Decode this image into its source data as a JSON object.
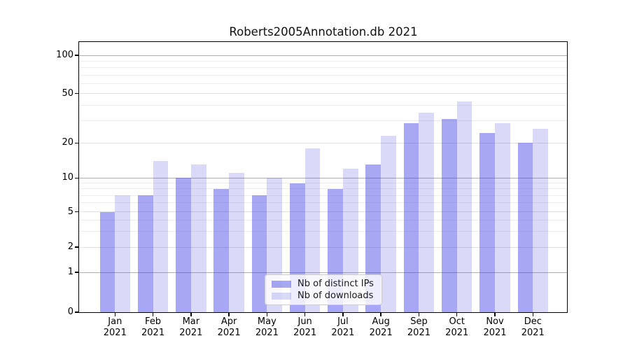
{
  "title": "Roberts2005Annotation.db 2021",
  "chart_data": {
    "type": "bar",
    "title": "Roberts2005Annotation.db 2021",
    "categories": [
      "Jan 2021",
      "Feb 2021",
      "Mar 2021",
      "Apr 2021",
      "May 2021",
      "Jun 2021",
      "Jul 2021",
      "Aug 2021",
      "Sep 2021",
      "Oct 2021",
      "Nov 2021",
      "Dec 2021"
    ],
    "series": [
      {
        "name": "Nb of distinct IPs",
        "color": "#a6a6f2",
        "values": [
          5,
          7,
          10,
          8,
          7,
          9,
          8,
          13,
          29,
          31,
          24,
          20
        ]
      },
      {
        "name": "Nb of downloads",
        "color": "#dadaf8",
        "values": [
          7,
          14,
          13,
          11,
          10,
          18,
          12,
          23,
          35,
          43,
          29,
          26
        ]
      }
    ],
    "xlabel": "",
    "ylabel": "",
    "yscale": "symlog",
    "yticks": [
      100,
      50,
      20,
      10,
      5,
      2,
      1,
      0
    ],
    "ylim": [
      0,
      130
    ],
    "grid": true,
    "legend_position": "lower center"
  },
  "legend": {
    "items": [
      {
        "label": "Nb of distinct IPs"
      },
      {
        "label": "Nb of downloads"
      }
    ]
  },
  "colors": {
    "series_ips_fill": "rgba(59,59,228,0.45)",
    "series_downloads_fill": "rgba(70,70,220,0.2)",
    "grid_decade": "#b0b0b0",
    "grid_major": "#e0e0e0",
    "grid_minor": "#eeeeee",
    "spine": "#000000",
    "legend_border": "#cccccc"
  }
}
